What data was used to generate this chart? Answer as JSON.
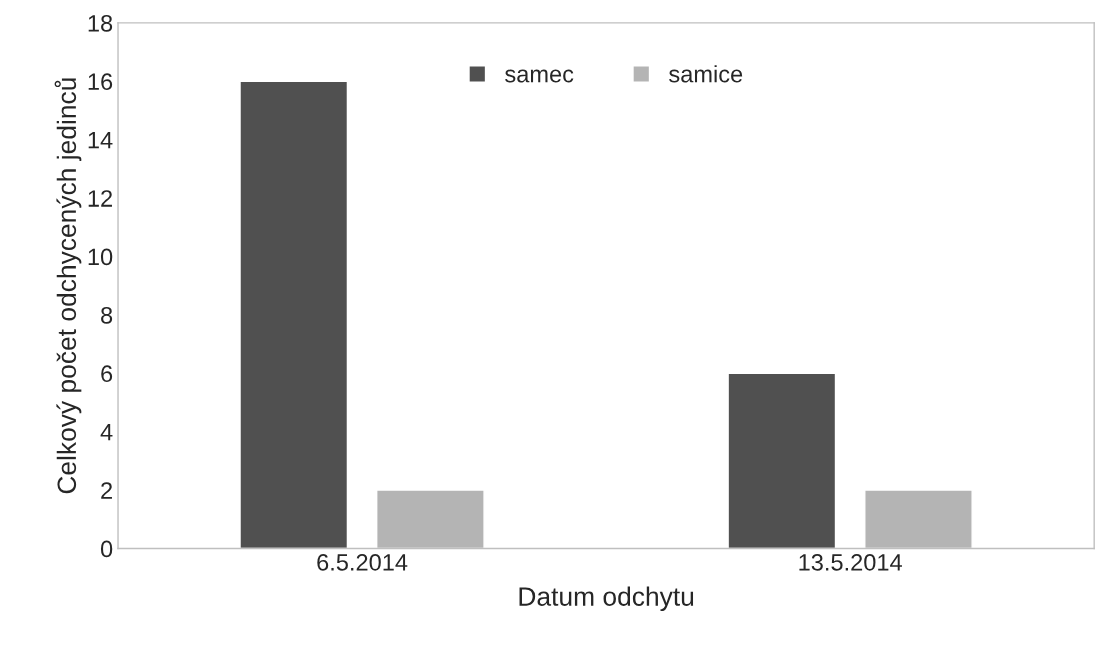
{
  "chart_data": {
    "type": "bar",
    "xlabel": "Datum odchytu",
    "ylabel": "Celkový počet odchycených jedinců",
    "categories": [
      "6.5.2014",
      "13.5.2014"
    ],
    "series": [
      {
        "name": "samec",
        "color": "#505050",
        "values": [
          16,
          6
        ]
      },
      {
        "name": "samice",
        "color": "#b4b4b4",
        "values": [
          2,
          2
        ]
      }
    ],
    "ylim": [
      0,
      18
    ],
    "yticks": [
      0,
      2,
      4,
      6,
      8,
      10,
      12,
      14,
      16,
      18
    ],
    "grid": false,
    "legend": "top"
  }
}
